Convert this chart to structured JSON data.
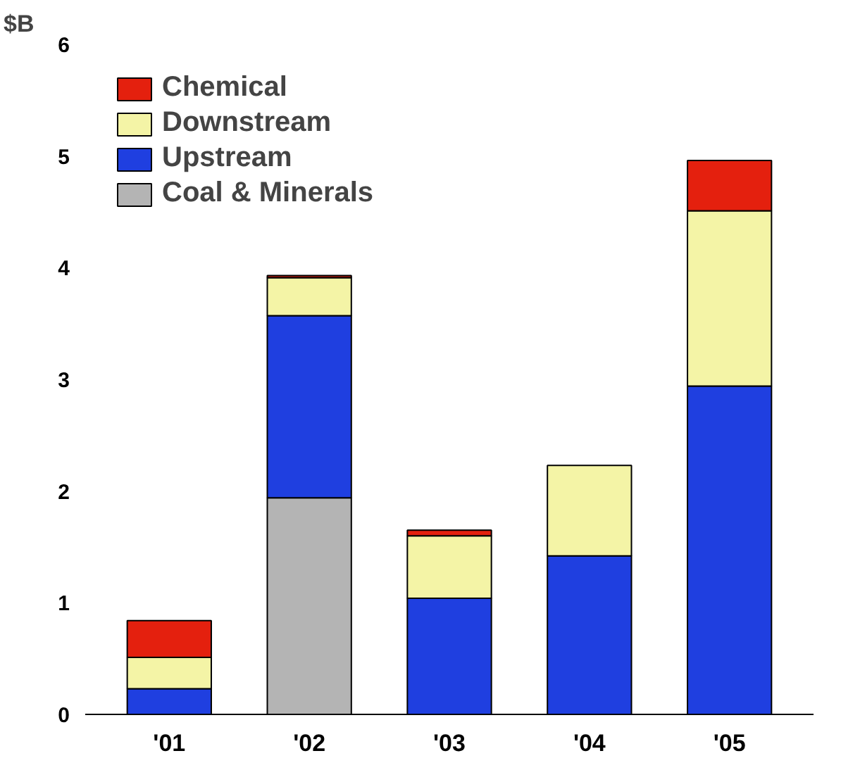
{
  "chart_data": {
    "type": "bar",
    "stacked": true,
    "ylabel": "$B",
    "categories": [
      "'01",
      "'02",
      "'03",
      "'04",
      "'05"
    ],
    "series": [
      {
        "name": "Coal & Minerals",
        "color": "#b4b4b4",
        "values": [
          null,
          1.94,
          null,
          null,
          null
        ]
      },
      {
        "name": "Upstream",
        "color": "#1f3fe0",
        "values": [
          0.23,
          1.63,
          1.04,
          1.42,
          2.94
        ]
      },
      {
        "name": "Downstream",
        "color": "#f4f4a6",
        "values": [
          0.28,
          0.34,
          0.56,
          0.81,
          1.57
        ]
      },
      {
        "name": "Chemical",
        "color": "#e4200e",
        "values": [
          0.33,
          0.02,
          0.05,
          null,
          0.45
        ]
      }
    ],
    "ylim": [
      0,
      6
    ],
    "yticks": [
      0,
      1,
      2,
      3,
      4,
      5,
      6
    ],
    "grid": false,
    "legend": "top left"
  }
}
